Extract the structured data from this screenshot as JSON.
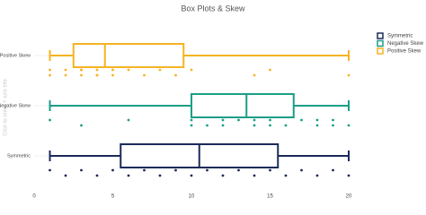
{
  "chart_data": {
    "type": "box",
    "title": "Box Plots & Skew",
    "y_label": "Click to enter Y axis title",
    "orientation": "horizontal",
    "xlim": [
      0,
      20
    ],
    "xticks": [
      0,
      5,
      10,
      15,
      20
    ],
    "series": [
      {
        "name": "Symmetric",
        "color": "#1b2a5a",
        "min": 1,
        "q1": 5.5,
        "median": 10.5,
        "q3": 15.5,
        "max": 20,
        "points": [
          1,
          2,
          3,
          4,
          5,
          6,
          7,
          8,
          9,
          10,
          11,
          12,
          13,
          14,
          15,
          16,
          17,
          18,
          19,
          20
        ]
      },
      {
        "name": "Negative Skew",
        "color": "#1a9e87",
        "min": 1,
        "q1": 10,
        "median": 13.5,
        "q3": 16.5,
        "max": 20,
        "points": [
          1,
          3,
          6,
          10,
          10,
          11,
          12,
          12,
          13,
          14,
          14,
          15,
          15,
          16,
          17,
          18,
          18,
          19,
          19,
          20
        ]
      },
      {
        "name": "Positive Skew",
        "color": "#f5b323",
        "min": 1,
        "q1": 2.5,
        "median": 4.5,
        "q3": 9.5,
        "max": 20,
        "points": [
          1,
          1,
          2,
          2,
          3,
          3,
          3,
          4,
          4,
          4,
          5,
          5,
          6,
          7,
          8,
          9,
          10,
          14,
          15,
          20
        ]
      }
    ]
  }
}
